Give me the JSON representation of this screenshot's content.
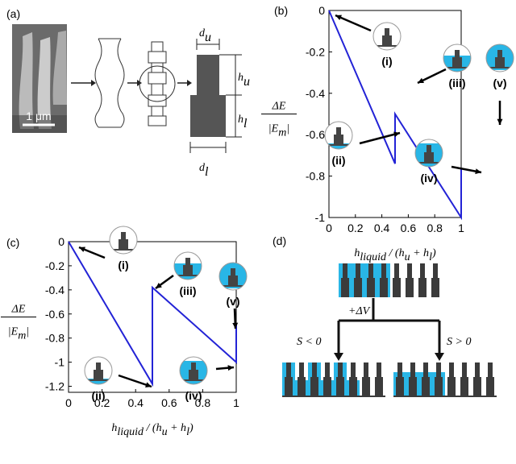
{
  "chart_data": [
    {
      "type": "line",
      "panel_label": "(b)",
      "x": [
        0,
        0.5,
        0.5,
        1,
        1
      ],
      "series": [
        {
          "color": "#2323d6",
          "values": [
            0,
            -0.74,
            -0.5,
            -1,
            -0.76
          ]
        }
      ],
      "xlim": [
        0,
        1
      ],
      "ylim": [
        -1,
        0
      ],
      "xticks": [
        0,
        0.2,
        0.4,
        0.6,
        0.8,
        1
      ],
      "yticks": [
        0,
        -0.2,
        -0.4,
        -0.6,
        -0.8,
        -1
      ],
      "ylabel": {
        "numerator": "ΔE",
        "den_start": "|E",
        "den_sub": "m",
        "den_end": "|"
      },
      "xlabel": {
        "h": "h",
        "h_sub": "liquid",
        "mid": " / (h",
        "u": "u",
        "plus": " + h",
        "l": "l",
        "end": ")"
      },
      "annotations": [
        "(i)",
        "(ii)",
        "(iii)",
        "(iv)",
        "(v)"
      ]
    },
    {
      "type": "line",
      "panel_label": "(c)",
      "x": [
        0,
        0.5,
        0.5,
        1,
        1
      ],
      "series": [
        {
          "color": "#2323d6",
          "values": [
            0,
            -1.18,
            -0.38,
            -1,
            -0.68
          ]
        }
      ],
      "xlim": [
        0,
        1
      ],
      "ylim": [
        -1.25,
        0
      ],
      "xticks": [
        0,
        0.2,
        0.4,
        0.6,
        0.8,
        1
      ],
      "yticks": [
        0,
        -0.2,
        -0.4,
        -0.6,
        -0.8,
        -1,
        -1.2
      ],
      "ylabel": {
        "numerator": "ΔE",
        "den_start": "|E",
        "den_sub": "m",
        "den_end": "|"
      },
      "xlabel": {
        "h": "h",
        "h_sub": "liquid",
        "mid": " / (h",
        "u": "u",
        "plus": " + h",
        "l": "l",
        "end": ")"
      },
      "annotations": [
        "(i)",
        "(ii)",
        "(iii)",
        "(iv)",
        "(v)"
      ]
    }
  ],
  "panel_a": {
    "label": "(a)",
    "scale": "1 μm",
    "d": "d",
    "u": "u",
    "h": "h",
    "l": "l"
  },
  "panel_d": {
    "label": "(d)",
    "voltage": "+ΔV",
    "left": "S < 0",
    "right": "S > 0"
  }
}
